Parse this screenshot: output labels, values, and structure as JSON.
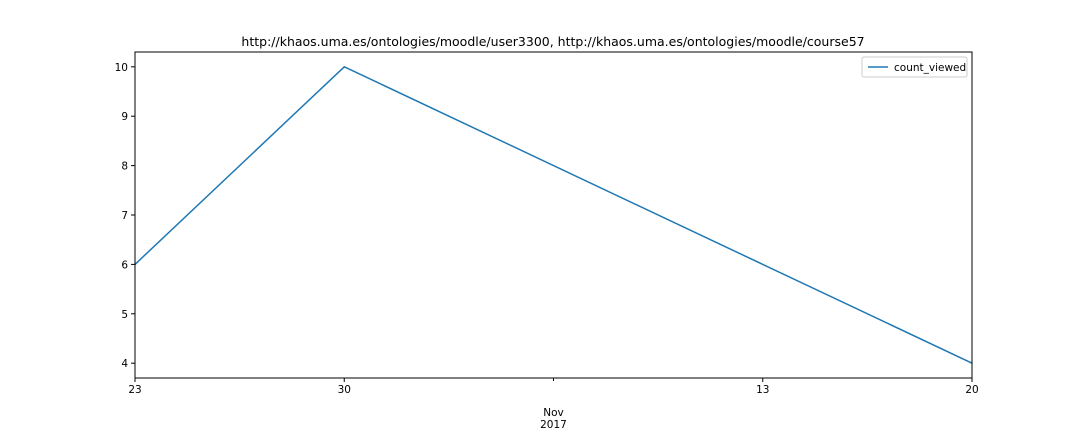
{
  "chart_data": {
    "type": "line",
    "title": "http://khaos.uma.es/ontologies/moodle/user3300, http://khaos.uma.es/ontologies/moodle/course57",
    "xlabel": "",
    "ylabel": "",
    "x": [
      "2017-10-23",
      "2017-10-30",
      "2017-11-20"
    ],
    "series": [
      {
        "name": "count_viewed",
        "color": "#1f77b4",
        "values": [
          6,
          10,
          4
        ]
      }
    ],
    "x_ticks": [
      {
        "date": "2017-10-23",
        "label": "23"
      },
      {
        "date": "2017-10-30",
        "label": "30"
      },
      {
        "date": "2017-11-13",
        "label": "13"
      },
      {
        "date": "2017-11-20",
        "label": "20"
      }
    ],
    "x_minor_tick_date": "2017-11-06",
    "x_month_label": "Nov",
    "x_year_label": "2017",
    "xlim": [
      "2017-10-23",
      "2017-11-20"
    ],
    "ylim": [
      3.7,
      10.3
    ],
    "y_ticks": [
      4,
      5,
      6,
      7,
      8,
      9,
      10
    ],
    "grid": false,
    "legend_position": "top-right"
  }
}
